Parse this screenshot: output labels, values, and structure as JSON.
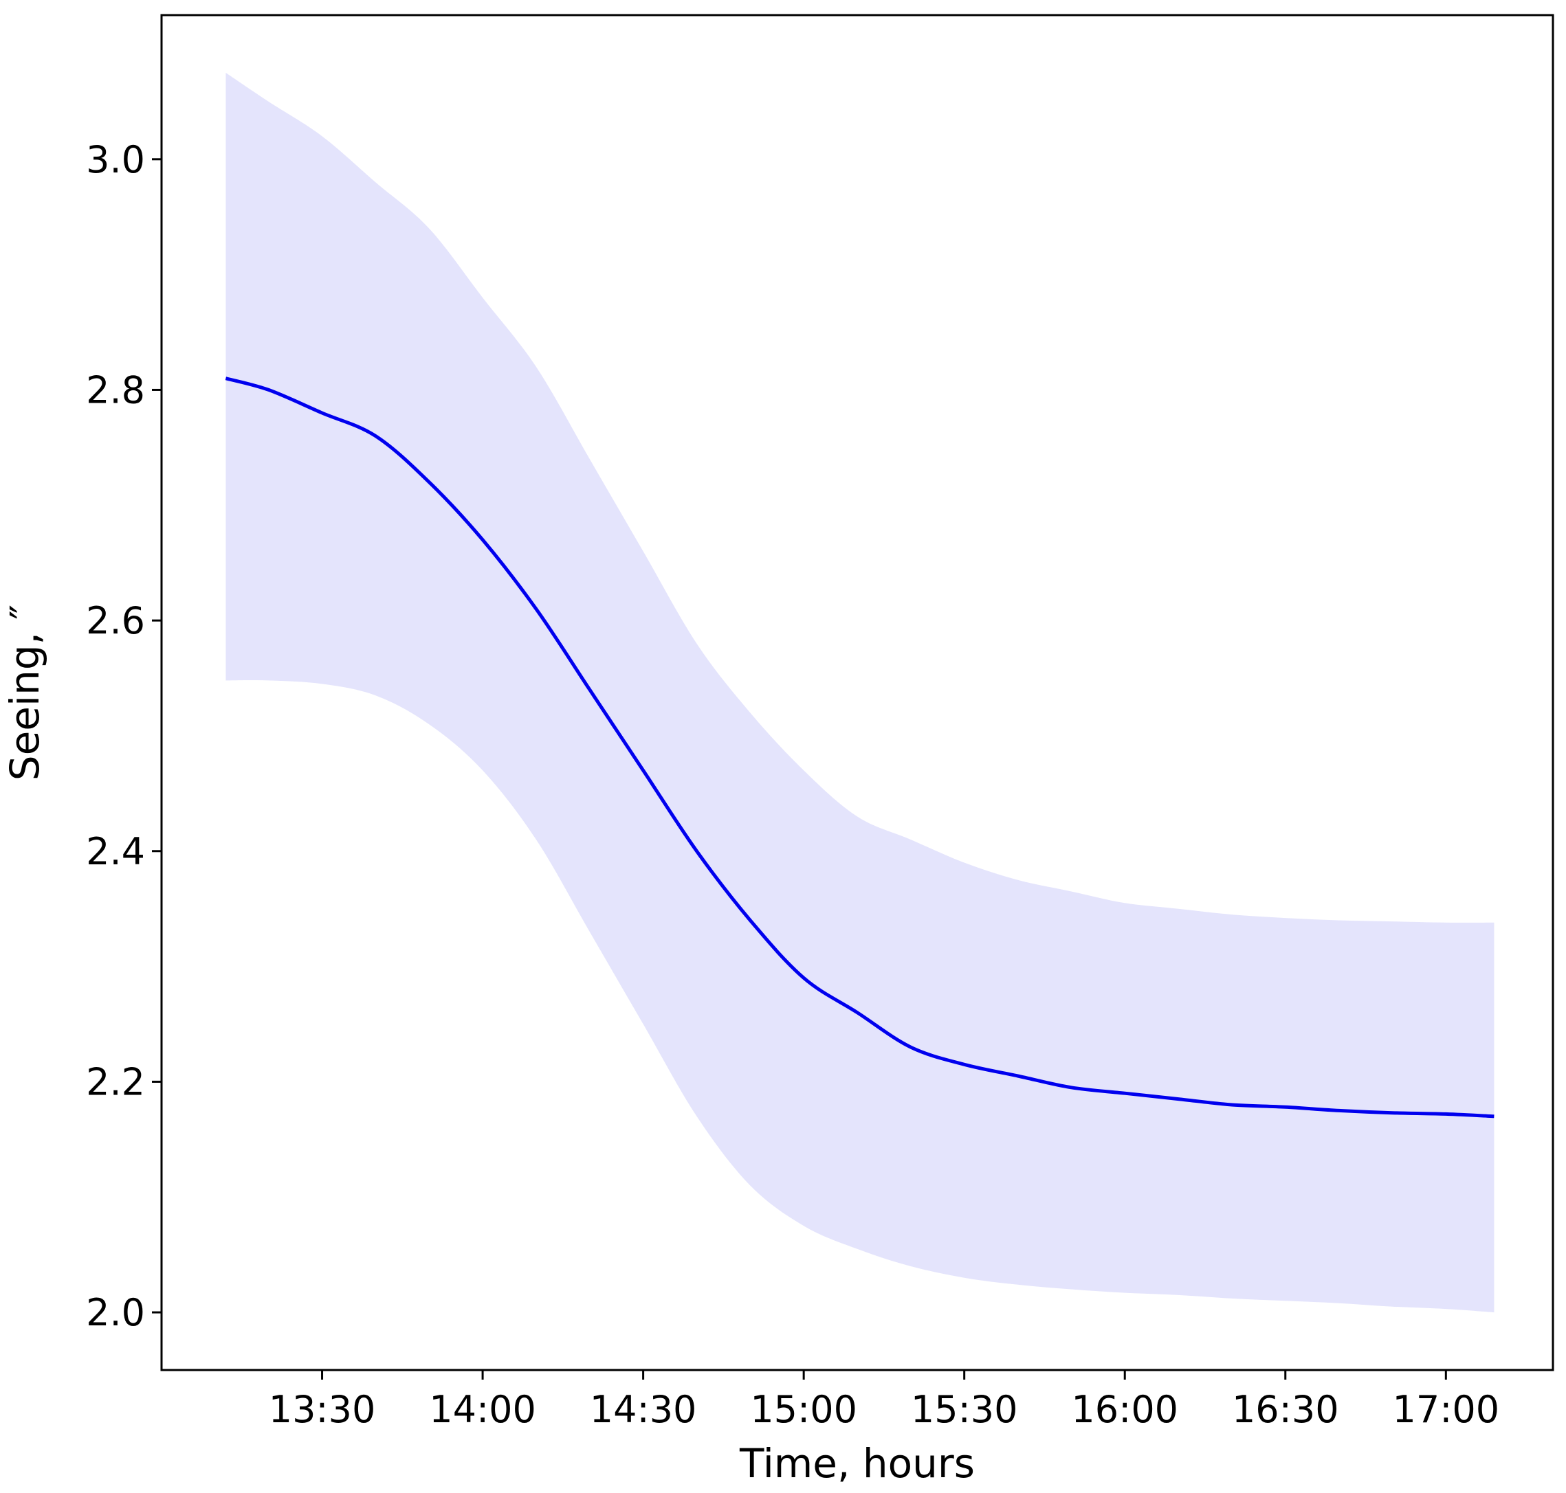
{
  "chart_data": {
    "type": "line",
    "title": "",
    "xlabel": "Time, hours",
    "ylabel": "Seeing, ″",
    "x_ticks": [
      "13:30",
      "14:00",
      "14:30",
      "15:00",
      "15:30",
      "16:00",
      "16:30",
      "17:00"
    ],
    "y_ticks": [
      "2.0",
      "2.2",
      "2.4",
      "2.6",
      "2.8",
      "3.0"
    ],
    "xlim": [
      "13:00",
      "17:20"
    ],
    "ylim": [
      1.95,
      3.125
    ],
    "grid": false,
    "legend": "none",
    "colors": {
      "line": "#0000ee",
      "band": "#e4e4fc",
      "axes": "#000000"
    },
    "series": [
      {
        "x": [
          "13:12",
          "13:20",
          "13:30",
          "13:40",
          "13:50",
          "14:00",
          "14:10",
          "14:20",
          "14:30",
          "14:40",
          "14:50",
          "15:00",
          "15:10",
          "15:20",
          "15:30",
          "15:40",
          "15:50",
          "16:00",
          "16:10",
          "16:20",
          "16:30",
          "16:40",
          "16:50",
          "17:00",
          "17:09"
        ],
        "mean": [
          2.81,
          2.8,
          2.78,
          2.76,
          2.72,
          2.67,
          2.61,
          2.54,
          2.47,
          2.4,
          2.34,
          2.29,
          2.26,
          2.23,
          2.215,
          2.205,
          2.195,
          2.19,
          2.185,
          2.18,
          2.178,
          2.175,
          2.173,
          2.172,
          2.17
        ],
        "upper": [
          3.075,
          3.05,
          3.02,
          2.98,
          2.94,
          2.88,
          2.82,
          2.74,
          2.66,
          2.58,
          2.52,
          2.47,
          2.43,
          2.41,
          2.39,
          2.375,
          2.365,
          2.355,
          2.35,
          2.345,
          2.342,
          2.34,
          2.339,
          2.338,
          2.338
        ],
        "lower": [
          2.548,
          2.548,
          2.545,
          2.535,
          2.51,
          2.47,
          2.41,
          2.33,
          2.25,
          2.17,
          2.11,
          2.075,
          2.055,
          2.04,
          2.03,
          2.024,
          2.02,
          2.017,
          2.015,
          2.012,
          2.01,
          2.008,
          2.005,
          2.003,
          2.0
        ]
      }
    ]
  }
}
